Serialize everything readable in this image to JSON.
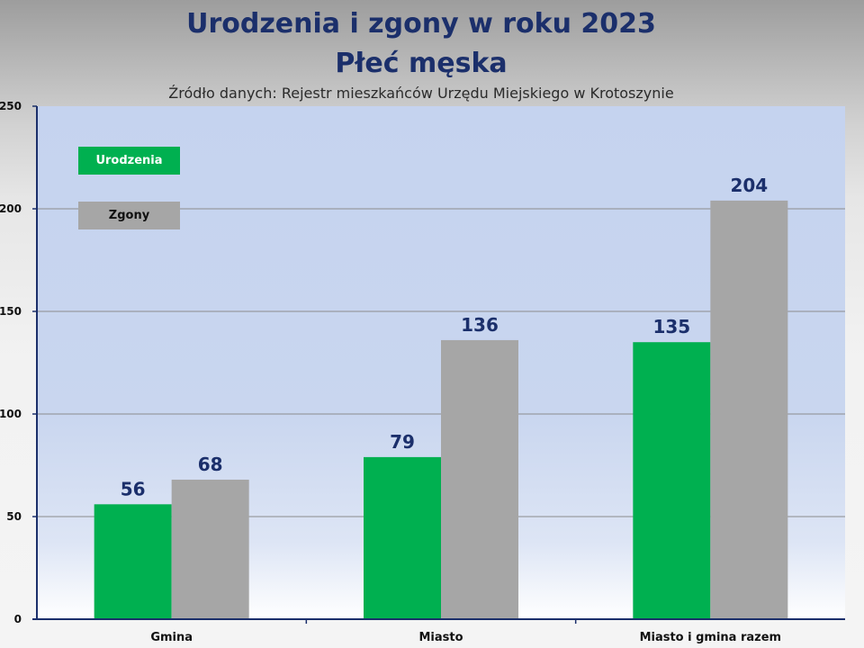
{
  "header": {
    "title_line1": "Urodzenia i zgony w roku 2023",
    "title_line2": "Płeć męska",
    "subtitle": "Źródło danych: Rejestr mieszkańców Urzędu Miejskiego w Krotoszynie"
  },
  "colors": {
    "births": "#00b050",
    "deaths": "#a6a6a6",
    "label_text": "#1b2f6b",
    "axis": "#1b2f6b"
  },
  "chart_data": {
    "type": "bar",
    "title": "Urodzenia i zgony w roku 2023",
    "subtitle": "Płeć męska",
    "categories": [
      "Gmina",
      "Miasto",
      "Miasto i gmina razem"
    ],
    "series": [
      {
        "name": "Urodzenia",
        "values": [
          56,
          79,
          135
        ]
      },
      {
        "name": "Zgony",
        "values": [
          68,
          136,
          204
        ]
      }
    ],
    "ylim": [
      0,
      250
    ],
    "yticks": [
      0,
      50,
      100,
      150,
      200,
      250
    ],
    "grid": true,
    "legend": "top-left",
    "data_labels": true
  }
}
